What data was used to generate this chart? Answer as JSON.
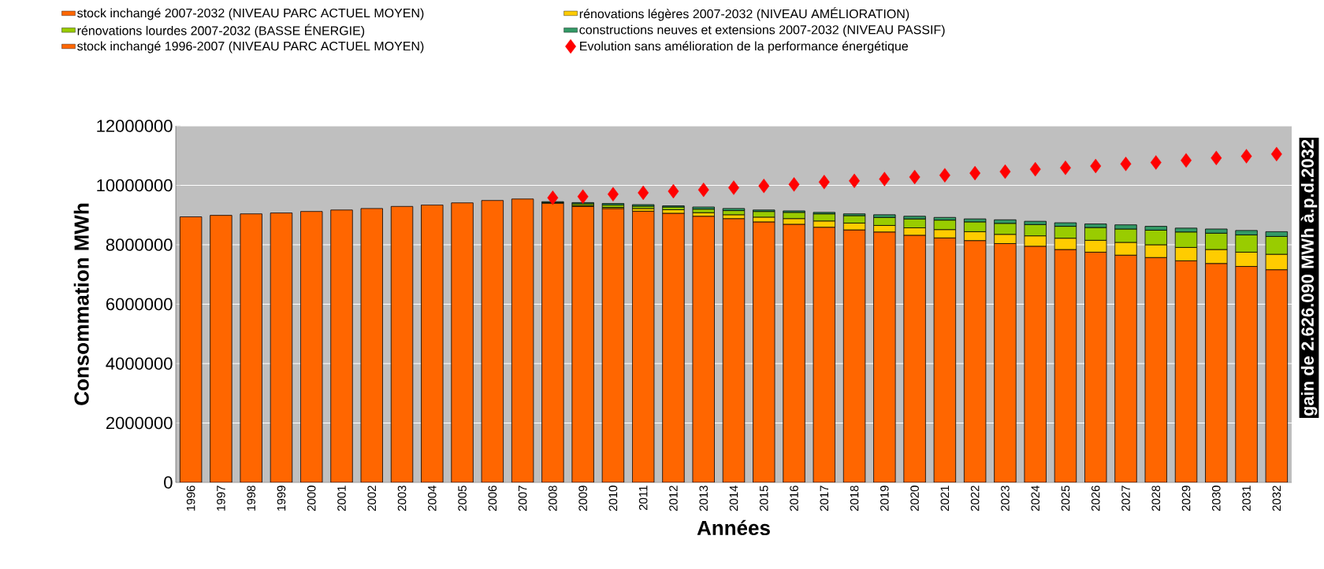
{
  "chart_data": {
    "type": "bar",
    "stacked": true,
    "xlabel": "Années",
    "ylabel": "Consommation MWh",
    "categories": [
      "1996",
      "1997",
      "1998",
      "1999",
      "2000",
      "2001",
      "2002",
      "2003",
      "2004",
      "2005",
      "2006",
      "2007",
      "2008",
      "2009",
      "2010",
      "2011",
      "2012",
      "2013",
      "2014",
      "2015",
      "2016",
      "2017",
      "2018",
      "2019",
      "2020",
      "2021",
      "2022",
      "2023",
      "2024",
      "2025",
      "2026",
      "2027",
      "2028",
      "2029",
      "2030",
      "2031",
      "2032"
    ],
    "series": [
      {
        "name": "stock inchangé 2007-2032 (NIVEAU PARC ACTUEL MOYEN)",
        "color": "#ff6600",
        "values": [
          null,
          null,
          null,
          null,
          null,
          null,
          null,
          null,
          null,
          null,
          null,
          null,
          9400000,
          9290000,
          9220000,
          9130000,
          9060000,
          8960000,
          8880000,
          8770000,
          8690000,
          8590000,
          8500000,
          8430000,
          8320000,
          8230000,
          8140000,
          8040000,
          7950000,
          7840000,
          7750000,
          7650000,
          7570000,
          7460000,
          7370000,
          7270000,
          7160000
        ]
      },
      {
        "name": "rénovations légères 2007-2032 (NIVEAU AMÉLIORATION)",
        "color": "#ffcc00",
        "values": [
          null,
          null,
          null,
          null,
          null,
          null,
          null,
          null,
          null,
          null,
          null,
          null,
          null,
          30000,
          40000,
          90000,
          120000,
          120000,
          130000,
          160000,
          190000,
          210000,
          230000,
          220000,
          250000,
          280000,
          300000,
          310000,
          350000,
          380000,
          400000,
          430000,
          430000,
          450000,
          470000,
          480000,
          520000
        ]
      },
      {
        "name": "rénovations lourdes 2007-2032 (BASSE ÉNERGIE)",
        "color": "#99cc00",
        "values": [
          null,
          null,
          null,
          null,
          null,
          null,
          null,
          null,
          null,
          null,
          null,
          null,
          20000,
          60000,
          80000,
          80000,
          90000,
          120000,
          140000,
          190000,
          210000,
          240000,
          250000,
          270000,
          300000,
          320000,
          330000,
          370000,
          380000,
          400000,
          430000,
          450000,
          490000,
          520000,
          550000,
          580000,
          600000
        ]
      },
      {
        "name": "constructions neuves et extensions 2007-2032 (NIVEAU PASSIF)",
        "color": "#339966",
        "values": [
          null,
          null,
          null,
          null,
          null,
          null,
          null,
          null,
          null,
          null,
          null,
          null,
          30000,
          40000,
          50000,
          50000,
          40000,
          70000,
          70000,
          50000,
          50000,
          50000,
          60000,
          90000,
          90000,
          90000,
          100000,
          120000,
          110000,
          120000,
          120000,
          140000,
          130000,
          130000,
          140000,
          150000,
          160000
        ]
      },
      {
        "name": "stock inchangé 1996-2007 (NIVEAU PARC ACTUEL MOYEN)",
        "color": "#ff6600",
        "values": [
          8940000,
          8990000,
          9040000,
          9070000,
          9120000,
          9170000,
          9220000,
          9290000,
          9340000,
          9410000,
          9490000,
          9540000,
          null,
          null,
          null,
          null,
          null,
          null,
          null,
          null,
          null,
          null,
          null,
          null,
          null,
          null,
          null,
          null,
          null,
          null,
          null,
          null,
          null,
          null,
          null,
          null,
          null
        ]
      },
      {
        "name": "Evolution sans amélioration de la performance énergétique",
        "type": "scatter",
        "color": "#ff0000",
        "values": [
          null,
          null,
          null,
          null,
          null,
          null,
          null,
          null,
          null,
          null,
          null,
          null,
          9580000,
          9620000,
          9700000,
          9750000,
          9800000,
          9850000,
          9920000,
          9980000,
          10030000,
          10110000,
          10150000,
          10210000,
          10280000,
          10340000,
          10410000,
          10460000,
          10540000,
          10590000,
          10650000,
          10720000,
          10770000,
          10840000,
          10920000,
          10980000,
          11050000
        ]
      }
    ],
    "ylim": [
      0,
      12000000
    ],
    "yticks": [
      0,
      2000000,
      4000000,
      6000000,
      8000000,
      10000000,
      12000000
    ],
    "grid": "y",
    "legend": "top",
    "marker": "diamond",
    "annotations": [
      "gain de 2.626.090 MWh à.p.d.2032"
    ]
  }
}
